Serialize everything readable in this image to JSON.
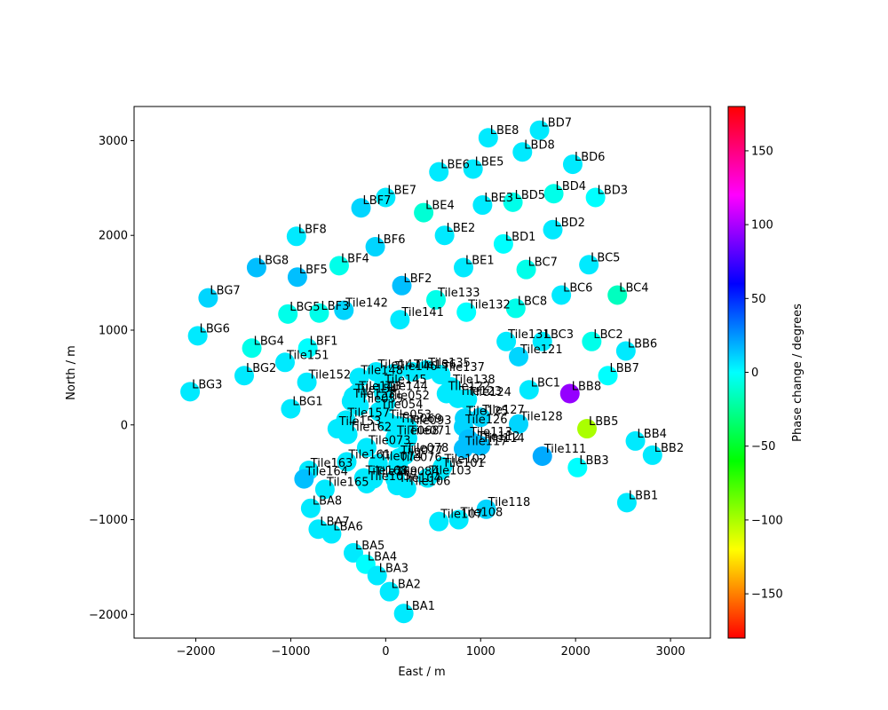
{
  "chart_data": {
    "type": "scatter",
    "xlabel": "East / m",
    "ylabel": "North / m",
    "xlim": [
      -2650,
      3420
    ],
    "ylim": [
      -2250,
      3360
    ],
    "xticks": [
      -2000,
      -1000,
      0,
      1000,
      2000,
      3000
    ],
    "yticks": [
      -2000,
      -1000,
      0,
      1000,
      2000,
      3000
    ],
    "colorbar": {
      "label": "Phase change / degrees",
      "range": [
        -180,
        180
      ],
      "ticks": [
        -150,
        -100,
        -50,
        0,
        50,
        100,
        150
      ],
      "colormap": "hsv"
    },
    "points": [
      {
        "name": "LBD7",
        "x": 1620,
        "y": 3110,
        "phase": 5
      },
      {
        "name": "LBE8",
        "x": 1080,
        "y": 3030,
        "phase": 5
      },
      {
        "name": "LBD8",
        "x": 1440,
        "y": 2880,
        "phase": 5
      },
      {
        "name": "LBD6",
        "x": 1970,
        "y": 2750,
        "phase": 5,
        "hidden": true
      },
      {
        "name": "LBE6",
        "x": 560,
        "y": 2670,
        "phase": 5
      },
      {
        "name": "LBE5",
        "x": 920,
        "y": 2700,
        "phase": 5
      },
      {
        "name": "LBE7",
        "x": 0,
        "y": 2400,
        "phase": 5
      },
      {
        "name": "LBF7",
        "x": -260,
        "y": 2290,
        "phase": 10
      },
      {
        "name": "LBE4",
        "x": 400,
        "y": 2240,
        "phase": -10
      },
      {
        "name": "LBE3",
        "x": 1020,
        "y": 2320,
        "phase": 5
      },
      {
        "name": "LBD5",
        "x": 1340,
        "y": 2350,
        "phase": -5
      },
      {
        "name": "LBD4",
        "x": 1770,
        "y": 2440,
        "phase": -5
      },
      {
        "name": "LBD3",
        "x": 2210,
        "y": 2400,
        "phase": 0
      },
      {
        "name": "LBD2",
        "x": 1760,
        "y": 2060,
        "phase": 5
      },
      {
        "name": "LBD1",
        "x": 1240,
        "y": 1910,
        "phase": 0
      },
      {
        "name": "LBF8",
        "x": -940,
        "y": 1990,
        "phase": 5
      },
      {
        "name": "LBE2",
        "x": 620,
        "y": 2000,
        "phase": 5
      },
      {
        "name": "LBF6",
        "x": -110,
        "y": 1880,
        "phase": 10
      },
      {
        "name": "LBG8",
        "x": -1360,
        "y": 1660,
        "phase": 15
      },
      {
        "name": "LBF4",
        "x": -490,
        "y": 1680,
        "phase": -5
      },
      {
        "name": "LBE1",
        "x": 820,
        "y": 1660,
        "phase": 5
      },
      {
        "name": "LBC7",
        "x": 1480,
        "y": 1640,
        "phase": -5
      },
      {
        "name": "LBC5",
        "x": 2140,
        "y": 1690,
        "phase": 5
      },
      {
        "name": "LBF5",
        "x": -930,
        "y": 1560,
        "phase": 15
      },
      {
        "name": "LBF2",
        "x": 170,
        "y": 1470,
        "phase": 15
      },
      {
        "name": "LBG7",
        "x": -1870,
        "y": 1340,
        "phase": 10
      },
      {
        "name": "LBC6",
        "x": 1850,
        "y": 1370,
        "phase": 5
      },
      {
        "name": "LBC4",
        "x": 2440,
        "y": 1370,
        "phase": -15
      },
      {
        "name": "Tile133",
        "x": 530,
        "y": 1320,
        "phase": -5
      },
      {
        "name": "LBF3",
        "x": -700,
        "y": 1180,
        "phase": -5
      },
      {
        "name": "LBG5",
        "x": -1030,
        "y": 1170,
        "phase": -5,
        "hidden": true
      },
      {
        "name": "Tile142",
        "x": -440,
        "y": 1210,
        "phase": 10
      },
      {
        "name": "LBC8",
        "x": 1370,
        "y": 1230,
        "phase": -5
      },
      {
        "name": "Tile132",
        "x": 850,
        "y": 1190,
        "phase": 0
      },
      {
        "name": "Tile141",
        "x": 150,
        "y": 1110,
        "phase": 5
      },
      {
        "name": "LBG6",
        "x": -1980,
        "y": 940,
        "phase": 5
      },
      {
        "name": "LBC3",
        "x": 1650,
        "y": 880,
        "phase": 5
      },
      {
        "name": "LBC2",
        "x": 2170,
        "y": 880,
        "phase": -5
      },
      {
        "name": "Tile131",
        "x": 1270,
        "y": 880,
        "phase": 5,
        "hidden": true
      },
      {
        "name": "LBG4",
        "x": -1410,
        "y": 810,
        "phase": -5
      },
      {
        "name": "LBF1",
        "x": -820,
        "y": 810,
        "phase": 0
      },
      {
        "name": "LBB6",
        "x": 2530,
        "y": 780,
        "phase": 5
      },
      {
        "name": "Tile121",
        "x": 1400,
        "y": 720,
        "phase": 10
      },
      {
        "name": "Tile151",
        "x": -1060,
        "y": 660,
        "phase": 5
      },
      {
        "name": "LBG2",
        "x": -1490,
        "y": 520,
        "phase": 5
      },
      {
        "name": "LBB7",
        "x": 2340,
        "y": 520,
        "phase": 0
      },
      {
        "name": "Tile152",
        "x": -830,
        "y": 450,
        "phase": 5
      },
      {
        "name": "Tile148",
        "x": -280,
        "y": 500,
        "phase": 5
      },
      {
        "name": "Tile147",
        "x": -100,
        "y": 560,
        "phase": 5
      },
      {
        "name": "Tile146",
        "x": 80,
        "y": 540,
        "phase": 5
      },
      {
        "name": "Tile136",
        "x": 280,
        "y": 560,
        "phase": 5
      },
      {
        "name": "Tile135",
        "x": 430,
        "y": 580,
        "phase": 5
      },
      {
        "name": "Tile137",
        "x": 580,
        "y": 530,
        "phase": 5
      },
      {
        "name": "Tile138",
        "x": 690,
        "y": 400,
        "phase": 5
      },
      {
        "name": "Tile145",
        "x": -30,
        "y": 400,
        "phase": 5
      },
      {
        "name": "Tile144",
        "x": -20,
        "y": 330,
        "phase": 5
      },
      {
        "name": "Tile143",
        "x": -300,
        "y": 330,
        "phase": 5
      },
      {
        "name": "Tile154",
        "x": -340,
        "y": 300,
        "phase": 5
      },
      {
        "name": "Tile153",
        "x": -360,
        "y": 250,
        "phase": 5
      },
      {
        "name": "Tile122",
        "x": 640,
        "y": 330,
        "phase": 5
      },
      {
        "name": "Tile123",
        "x": 760,
        "y": 280,
        "phase": 5
      },
      {
        "name": "Tile124",
        "x": 860,
        "y": 270,
        "phase": 5
      },
      {
        "name": "LBC1",
        "x": 1510,
        "y": 370,
        "phase": 5
      },
      {
        "name": "LBB8",
        "x": 1940,
        "y": 330,
        "phase": 95
      },
      {
        "name": "LBG3",
        "x": -2060,
        "y": 350,
        "phase": 5
      },
      {
        "name": "LBG1",
        "x": -1000,
        "y": 170,
        "phase": 5
      },
      {
        "name": "Tile055",
        "x": -280,
        "y": 200,
        "phase": 5
      },
      {
        "name": "Tile052",
        "x": 0,
        "y": 230,
        "phase": 5
      },
      {
        "name": "Tile054",
        "x": -70,
        "y": 140,
        "phase": 5
      },
      {
        "name": "Tile157",
        "x": -420,
        "y": 50,
        "phase": 5
      },
      {
        "name": "Tile053",
        "x": 20,
        "y": 30,
        "phase": 5
      },
      {
        "name": "Tile069",
        "x": 130,
        "y": -10,
        "phase": 5
      },
      {
        "name": "Tile093",
        "x": 230,
        "y": -30,
        "phase": 5
      },
      {
        "name": "Tile125",
        "x": 830,
        "y": 70,
        "phase": 10
      },
      {
        "name": "Tile127",
        "x": 1000,
        "y": 80,
        "phase": 10
      },
      {
        "name": "Tile128",
        "x": 1400,
        "y": 10,
        "phase": 10
      },
      {
        "name": "LBB5",
        "x": 2120,
        "y": -40,
        "phase": -100
      },
      {
        "name": "LBB4",
        "x": 2630,
        "y": -170,
        "phase": 5
      },
      {
        "name": "Tile153",
        "x": -510,
        "y": -40,
        "phase": 5
      },
      {
        "name": "Tile162",
        "x": -400,
        "y": -100,
        "phase": 5
      },
      {
        "name": "Tile126",
        "x": 820,
        "y": -20,
        "phase": 10
      },
      {
        "name": "Tile068",
        "x": 100,
        "y": -140,
        "phase": 5
      },
      {
        "name": "Tile071",
        "x": 230,
        "y": -140,
        "phase": 5
      },
      {
        "name": "Tile113",
        "x": 870,
        "y": -150,
        "phase": 15
      },
      {
        "name": "Tile112",
        "x": 950,
        "y": -200,
        "phase": 15
      },
      {
        "name": "Tile114",
        "x": 1000,
        "y": -220,
        "phase": 15
      },
      {
        "name": "Tile117",
        "x": 820,
        "y": -250,
        "phase": 15
      },
      {
        "name": "LBB2",
        "x": 2810,
        "y": -320,
        "phase": 5
      },
      {
        "name": "Tile073",
        "x": -200,
        "y": -240,
        "phase": 5
      },
      {
        "name": "Tile078",
        "x": 200,
        "y": -320,
        "phase": 5
      },
      {
        "name": "Tile077",
        "x": 140,
        "y": -350,
        "phase": 5
      },
      {
        "name": "Tile111",
        "x": 1650,
        "y": -330,
        "phase": 20
      },
      {
        "name": "Tile161",
        "x": -410,
        "y": -390,
        "phase": 5
      },
      {
        "name": "Tile074",
        "x": -80,
        "y": -410,
        "phase": 5
      },
      {
        "name": "Tile076",
        "x": 130,
        "y": -420,
        "phase": 5
      },
      {
        "name": "Tile102",
        "x": 600,
        "y": -440,
        "phase": 5
      },
      {
        "name": "Tile101",
        "x": 580,
        "y": -480,
        "phase": 5
      },
      {
        "name": "LBB3",
        "x": 2020,
        "y": -450,
        "phase": 0
      },
      {
        "name": "Tile163",
        "x": -810,
        "y": -480,
        "phase": 5
      },
      {
        "name": "Tile164",
        "x": -860,
        "y": -570,
        "phase": 15
      },
      {
        "name": "Tile168",
        "x": -230,
        "y": -560,
        "phase": 5
      },
      {
        "name": "Tile169",
        "x": -130,
        "y": -570,
        "phase": 5
      },
      {
        "name": "Tile084",
        "x": 100,
        "y": -570,
        "phase": 5
      },
      {
        "name": "Tile103",
        "x": 440,
        "y": -560,
        "phase": 5
      },
      {
        "name": "Tile105",
        "x": -200,
        "y": -620,
        "phase": 5
      },
      {
        "name": "Tile104",
        "x": 120,
        "y": -640,
        "phase": 5
      },
      {
        "name": "Tile106",
        "x": 220,
        "y": -670,
        "phase": 5
      },
      {
        "name": "Tile165",
        "x": -640,
        "y": -680,
        "phase": 5
      },
      {
        "name": "LBB1",
        "x": 2540,
        "y": -820,
        "phase": 5
      },
      {
        "name": "Tile118",
        "x": 1060,
        "y": -890,
        "phase": 10
      },
      {
        "name": "LBA8",
        "x": -790,
        "y": -880,
        "phase": 5
      },
      {
        "name": "Tile108",
        "x": 770,
        "y": -1000,
        "phase": 5,
        "hidden": true
      },
      {
        "name": "Tile107",
        "x": 560,
        "y": -1020,
        "phase": 5
      },
      {
        "name": "LBA7",
        "x": -710,
        "y": -1100,
        "phase": 5
      },
      {
        "name": "LBA6",
        "x": -570,
        "y": -1150,
        "phase": 5
      },
      {
        "name": "LBA5",
        "x": -340,
        "y": -1350,
        "phase": 5,
        "hidden": true
      },
      {
        "name": "LBA4",
        "x": -210,
        "y": -1470,
        "phase": 0
      },
      {
        "name": "LBA3",
        "x": -90,
        "y": -1590,
        "phase": 5
      },
      {
        "name": "LBA2",
        "x": 40,
        "y": -1760,
        "phase": 5
      },
      {
        "name": "LBA1",
        "x": 190,
        "y": -1990,
        "phase": 5
      }
    ]
  }
}
